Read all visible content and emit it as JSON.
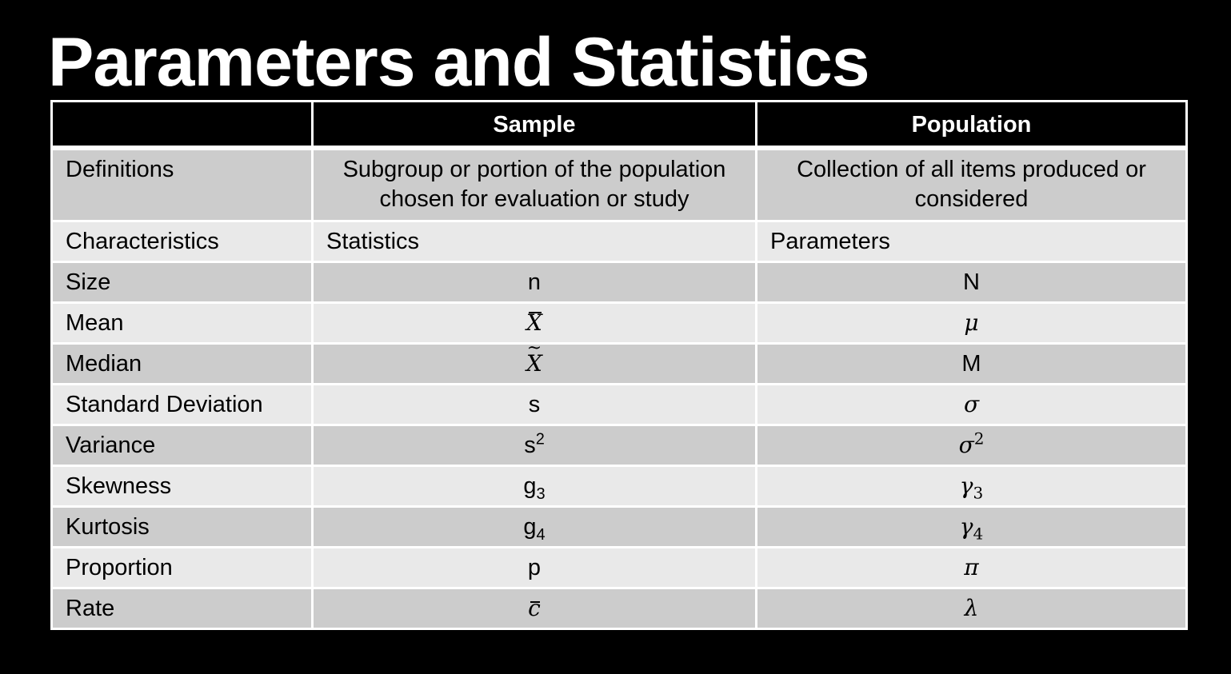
{
  "title": "Parameters and Statistics",
  "table": {
    "headers": [
      "",
      "Sample",
      "Population"
    ],
    "rows": [
      {
        "label": "Definitions",
        "sample": "Subgroup or portion of the population chosen for evaluation or study",
        "population": "Collection of all items produced or considered"
      },
      {
        "label": "Characteristics",
        "sample": "Statistics",
        "population": "Parameters"
      },
      {
        "label": "Size",
        "sample": "n",
        "population": "N"
      },
      {
        "label": "Mean",
        "sample_base": "X",
        "sample_accent": "bar",
        "population": "μ"
      },
      {
        "label": "Median",
        "sample_base": "X",
        "sample_accent": "~",
        "population": "M"
      },
      {
        "label": "Standard Deviation",
        "sample": "s",
        "population": "σ"
      },
      {
        "label": "Variance",
        "sample_base": "s",
        "sample_sup": "2",
        "population_base": "σ",
        "population_sup": "2"
      },
      {
        "label": "Skewness",
        "sample_base": "g",
        "sample_sub": "3",
        "population_base": "γ",
        "population_sub": "3"
      },
      {
        "label": "Kurtosis",
        "sample_base": "g",
        "sample_sub": "4",
        "population_base": "γ",
        "population_sub": "4"
      },
      {
        "label": "Proportion",
        "sample": "p",
        "population": "π"
      },
      {
        "label": "Rate",
        "sample_base": "c",
        "sample_accent": "bar",
        "population": "λ"
      }
    ]
  }
}
